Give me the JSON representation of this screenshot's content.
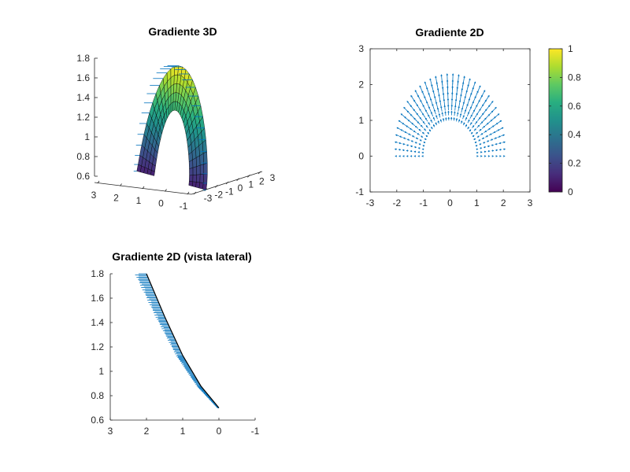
{
  "figure": {
    "background": "#ffffff",
    "gradient_color": "#0072bd",
    "colormap": [
      "#440154",
      "#472d7b",
      "#3b528b",
      "#2c728e",
      "#21918c",
      "#28ae80",
      "#5ec962",
      "#addc30",
      "#fde725"
    ]
  },
  "chart_data": [
    {
      "type": "surface",
      "title": "Gradiente 3D",
      "x_ticks": [
        "3",
        "2",
        "1",
        "0",
        "-1"
      ],
      "y_ticks": [
        "-3",
        "-2",
        "-1",
        "0",
        "1",
        "2",
        "3"
      ],
      "z_ticks": [
        "0.6",
        "0.8",
        "1",
        "1.2",
        "1.4",
        "1.6",
        "1.8"
      ],
      "zlim": [
        0.6,
        1.8
      ],
      "surface": {
        "r_range": [
          1.0,
          2.0
        ],
        "theta_range_deg": [
          0,
          180
        ],
        "z_min": 0.7,
        "z_max": 1.8
      },
      "overlay": "gradient arrows (quiver3)"
    },
    {
      "type": "quiver",
      "title": "Gradiente 2D",
      "xlim": [
        -3,
        3
      ],
      "ylim": [
        -1,
        3
      ],
      "x_ticks": [
        "-3",
        "-2",
        "-1",
        "0",
        "1",
        "2",
        "3"
      ],
      "y_ticks": [
        "-1",
        "0",
        "1",
        "2",
        "3"
      ],
      "field": {
        "r_range": [
          1.0,
          2.0
        ],
        "theta_range_deg": [
          0,
          180
        ],
        "direction": "radial outward"
      },
      "colorbar": {
        "ticks": [
          "0",
          "0.2",
          "0.4",
          "0.6",
          "0.8",
          "1"
        ],
        "range": [
          0,
          1
        ]
      }
    },
    {
      "type": "quiver",
      "title": "Gradiente 2D (vista lateral)",
      "x_ticks": [
        "3",
        "2",
        "1",
        "0",
        "-1"
      ],
      "y_ticks": [
        "0.6",
        "0.8",
        "1",
        "1.2",
        "1.4",
        "1.6",
        "1.8"
      ],
      "xlim": [
        3,
        -1
      ],
      "ylim": [
        0.6,
        1.8
      ],
      "profile": {
        "x": [
          2.0,
          1.5,
          1.0,
          0.5,
          0.0
        ],
        "z": [
          1.8,
          1.45,
          1.13,
          0.88,
          0.7
        ]
      }
    }
  ]
}
